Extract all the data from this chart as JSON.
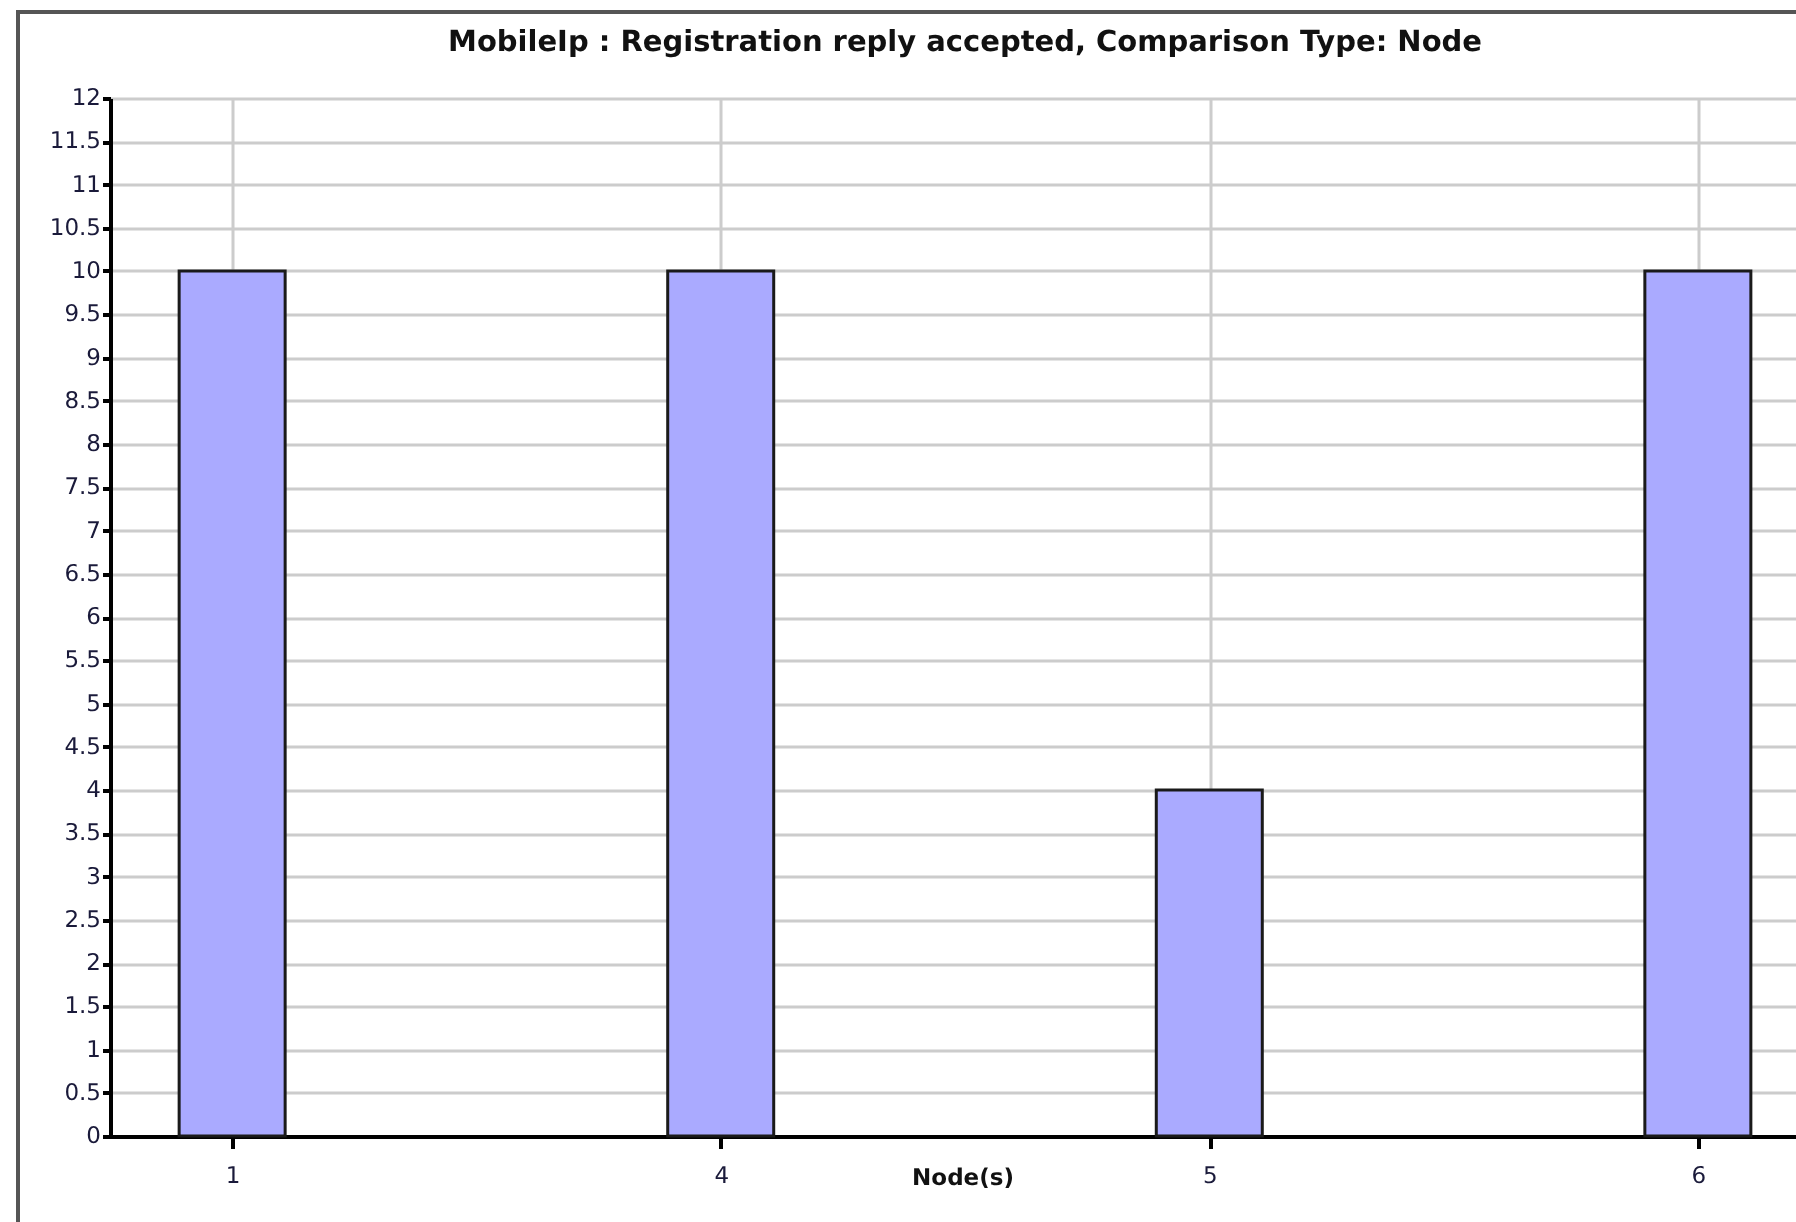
{
  "chart_data": {
    "type": "bar",
    "title": "MobileIp :  Registration reply accepted, Comparison Type: Node",
    "xlabel": "Node(s)",
    "categories": [
      "1",
      "4",
      "5",
      "6"
    ],
    "values": [
      10,
      10,
      4,
      10
    ],
    "color": "#aaaaff",
    "ylim": [
      0,
      12
    ],
    "yticks": [
      0,
      0.5,
      1,
      1.5,
      2,
      2.5,
      3,
      3.5,
      4,
      4.5,
      5,
      5.5,
      6,
      6.5,
      7,
      7.5,
      8,
      8.5,
      9,
      9.5,
      10,
      10.5,
      11,
      11.5,
      12
    ],
    "grid": true
  }
}
